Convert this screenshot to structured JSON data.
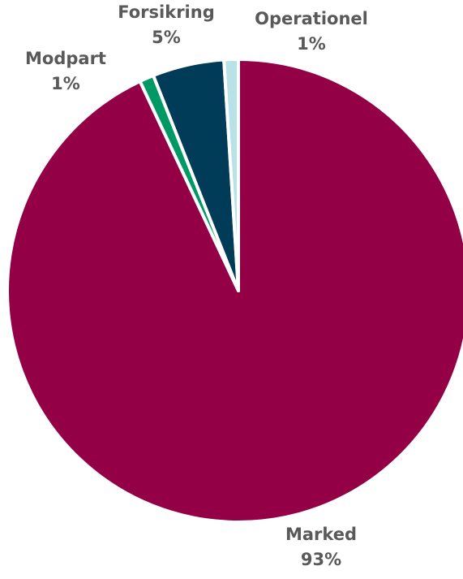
{
  "chart_data": {
    "type": "pie",
    "title": "",
    "start": "12 o'clock",
    "direction": "clockwise",
    "slices": [
      {
        "name": "Marked",
        "value": 93,
        "label": "93%",
        "color": "#930046"
      },
      {
        "name": "Modpart",
        "value": 1,
        "label": "1%",
        "color": "#009966"
      },
      {
        "name": "Forsikring",
        "value": 5,
        "label": "5%",
        "color": "#003b57"
      },
      {
        "name": "Operationel",
        "value": 1,
        "label": "1%",
        "color": "#b8e1e8"
      }
    ],
    "label_color": "#595959",
    "separator_color": "#ffffff",
    "legend": "none"
  }
}
